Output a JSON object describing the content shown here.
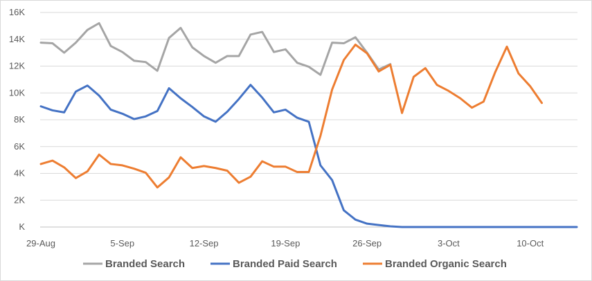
{
  "chart_data": {
    "type": "line",
    "title": "",
    "xlabel": "",
    "ylabel": "",
    "ylim": [
      0,
      16000
    ],
    "y_ticks": [
      0,
      2000,
      4000,
      6000,
      8000,
      10000,
      12000,
      14000,
      16000
    ],
    "y_tick_labels": [
      "K",
      "2K",
      "4K",
      "6K",
      "8K",
      "10K",
      "12K",
      "14K",
      "16K"
    ],
    "x_start": "29-Aug",
    "x_points": 47,
    "x_tick_labels": [
      {
        "label": "29-Aug",
        "index": 0
      },
      {
        "label": "5-Sep",
        "index": 7
      },
      {
        "label": "12-Sep",
        "index": 14
      },
      {
        "label": "19-Sep",
        "index": 21
      },
      {
        "label": "26-Sep",
        "index": 28
      },
      {
        "label": "3-Oct",
        "index": 35
      },
      {
        "label": "10-Oct",
        "index": 42
      }
    ],
    "grid": true,
    "legend_position": "bottom",
    "series": [
      {
        "name": "Branded Search",
        "color": "#a5a5a5",
        "values": [
          13750,
          13700,
          13000,
          13750,
          14700,
          15200,
          13500,
          13050,
          12400,
          12300,
          11650,
          14100,
          14850,
          13400,
          12750,
          12250,
          12750,
          12750,
          14350,
          14550,
          13050,
          13250,
          12250,
          11950,
          11350,
          13750,
          13700,
          14150,
          13000,
          11750,
          12150,
          null,
          null,
          null,
          null,
          null,
          null,
          null,
          null,
          null,
          null,
          null,
          null,
          null,
          null,
          null,
          null
        ]
      },
      {
        "name": "Branded Paid Search",
        "color": "#4472c4",
        "values": [
          9000,
          8700,
          8550,
          10100,
          10550,
          9800,
          8750,
          8450,
          8050,
          8250,
          8650,
          10350,
          9600,
          8950,
          8250,
          7850,
          8600,
          9550,
          10600,
          9650,
          8550,
          8750,
          8150,
          7850,
          4600,
          3500,
          1250,
          550,
          250,
          150,
          50,
          0,
          0,
          0,
          0,
          0,
          0,
          0,
          0,
          0,
          0,
          0,
          0,
          0,
          0,
          0,
          0
        ]
      },
      {
        "name": "Branded Organic Search",
        "color": "#ed7d31",
        "values": [
          4700,
          4950,
          4450,
          3650,
          4150,
          5400,
          4700,
          4600,
          4350,
          4050,
          2950,
          3700,
          5200,
          4400,
          4550,
          4400,
          4200,
          3300,
          3750,
          4900,
          4500,
          4500,
          4100,
          4100,
          6800,
          10250,
          12450,
          13600,
          12950,
          11600,
          12100,
          8500,
          11200,
          11850,
          10600,
          10150,
          9600,
          8900,
          9350,
          11550,
          13450,
          11450,
          10500,
          9250,
          null,
          null,
          null
        ]
      }
    ]
  }
}
